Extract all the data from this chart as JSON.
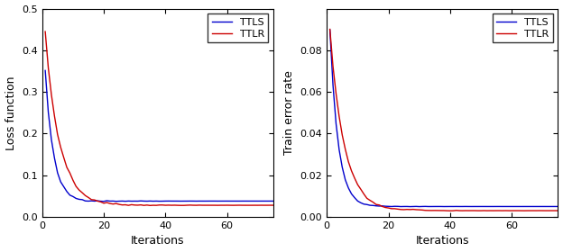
{
  "left_plot": {
    "ylabel": "Loss function",
    "xlabel": "Iterations",
    "xlim": [
      0,
      75
    ],
    "ylim": [
      0,
      0.5
    ],
    "yticks": [
      0,
      0.1,
      0.2,
      0.3,
      0.4,
      0.5
    ],
    "xticks": [
      0,
      20,
      40,
      60
    ],
    "ttls_color": "#0000cc",
    "ttlr_color": "#cc0000",
    "legend_labels": [
      "TTLS",
      "TTLR"
    ]
  },
  "right_plot": {
    "ylabel": "Train error rate",
    "xlabel": "Iterations",
    "xlim": [
      0,
      75
    ],
    "ylim": [
      0,
      0.1
    ],
    "yticks": [
      0,
      0.02,
      0.04,
      0.06,
      0.08
    ],
    "xticks": [
      0,
      20,
      40,
      60
    ],
    "ttls_color": "#0000cc",
    "ttlr_color": "#cc0000",
    "legend_labels": [
      "TTLS",
      "TTLR"
    ]
  }
}
